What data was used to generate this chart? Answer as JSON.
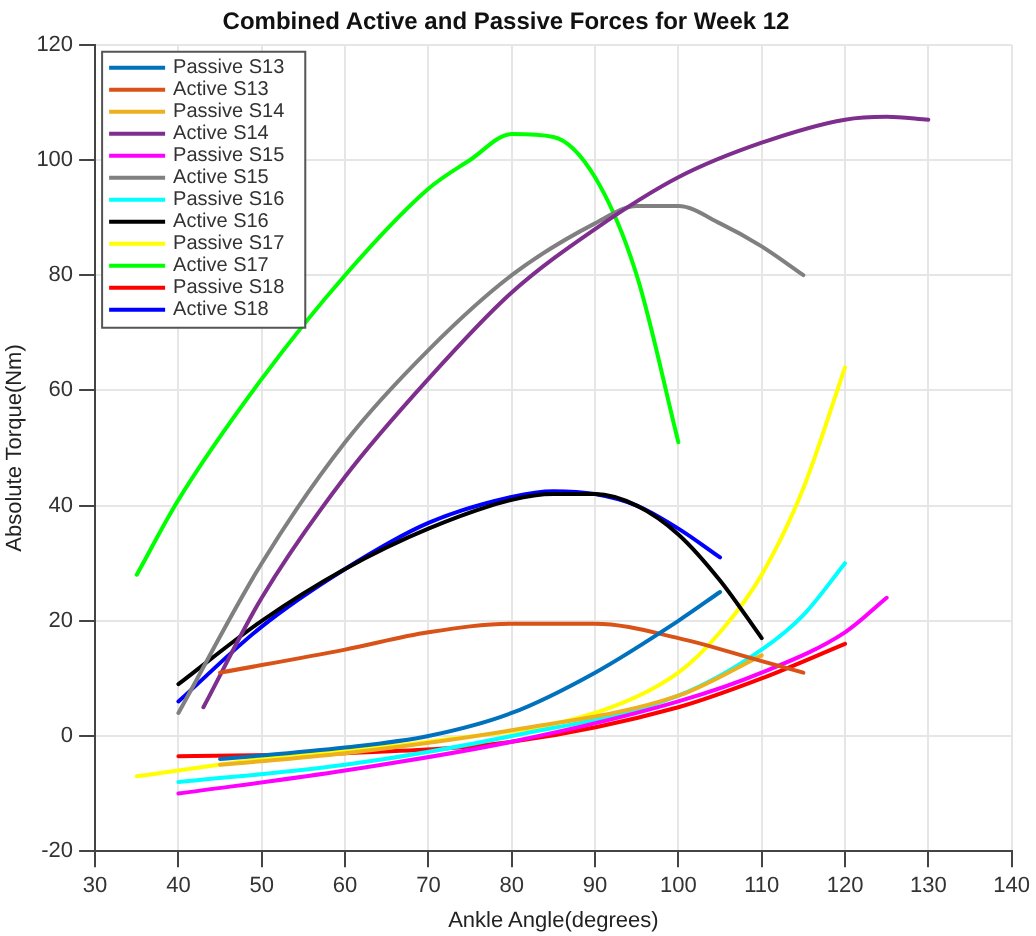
{
  "chart_data": {
    "type": "line",
    "title": "Combined Active and Passive Forces for Week 12",
    "xlabel": "Ankle Angle(degrees)",
    "ylabel": "Absolute Torque(Nm)",
    "xlim": [
      30,
      140
    ],
    "xticks": [
      30,
      40,
      50,
      60,
      70,
      80,
      90,
      100,
      110,
      120,
      130,
      140
    ],
    "ylim": [
      -20,
      120
    ],
    "yticks": [
      -20,
      0,
      20,
      40,
      60,
      80,
      100,
      120
    ],
    "grid": true,
    "legend": "top left",
    "marker": "none",
    "line_style": "solid",
    "series": [
      {
        "name": "Passive S13",
        "color": "#0072bd",
        "x": [
          45,
          60,
          70,
          80,
          90,
          100,
          105
        ],
        "values": [
          -4,
          -2,
          0,
          4,
          11,
          20,
          25
        ]
      },
      {
        "name": "Active S13",
        "color": "#d95319",
        "x": [
          45,
          60,
          70,
          80,
          90,
          100,
          110,
          115
        ],
        "values": [
          11,
          15,
          18,
          19.5,
          19.5,
          17,
          13,
          11
        ]
      },
      {
        "name": "Passive S14",
        "color": "#edb120",
        "x": [
          45,
          60,
          80,
          100,
          110
        ],
        "values": [
          -5,
          -3,
          1,
          7,
          14
        ]
      },
      {
        "name": "Active S14",
        "color": "#7e2f8e",
        "x": [
          43,
          50,
          60,
          70,
          80,
          90,
          100,
          110,
          120,
          125,
          130
        ],
        "values": [
          5,
          24,
          45,
          62,
          77,
          88,
          97,
          103,
          107,
          107.5,
          107
        ]
      },
      {
        "name": "Passive S15",
        "color": "#ff00ff",
        "x": [
          40,
          60,
          80,
          100,
          110,
          120,
          125
        ],
        "values": [
          -10,
          -6,
          -1,
          6,
          11,
          18,
          24
        ]
      },
      {
        "name": "Active S15",
        "color": "#808080",
        "x": [
          40,
          50,
          60,
          70,
          80,
          90,
          95,
          100,
          105,
          110,
          115
        ],
        "values": [
          4,
          30,
          51,
          67,
          80,
          89,
          92,
          92,
          89,
          85,
          80
        ]
      },
      {
        "name": "Passive S16",
        "color": "#00ffff",
        "x": [
          40,
          60,
          80,
          100,
          110,
          115,
          120
        ],
        "values": [
          -8,
          -5,
          0,
          7,
          15,
          21,
          30
        ]
      },
      {
        "name": "Active S16",
        "color": "#000000",
        "x": [
          40,
          50,
          60,
          70,
          80,
          85,
          90,
          95,
          100,
          105,
          110
        ],
        "values": [
          9,
          20,
          29,
          36,
          41,
          42,
          42,
          40,
          35,
          27,
          17
        ]
      },
      {
        "name": "Passive S17",
        "color": "#ffff00",
        "x": [
          35,
          50,
          70,
          90,
          100,
          105,
          110,
          115,
          120
        ],
        "values": [
          -7,
          -4,
          -1,
          4,
          11,
          18,
          28,
          43,
          64
        ]
      },
      {
        "name": "Active S17",
        "color": "#00ff00",
        "x": [
          35,
          40,
          50,
          60,
          70,
          75,
          80,
          85,
          90,
          95,
          100
        ],
        "values": [
          28,
          41,
          62,
          80,
          95,
          100,
          104.5,
          104,
          97,
          80,
          51
        ]
      },
      {
        "name": "Passive S18",
        "color": "#ff0000",
        "x": [
          40,
          60,
          80,
          100,
          110,
          120
        ],
        "values": [
          -3.5,
          -3,
          -1,
          5,
          10,
          16
        ]
      },
      {
        "name": "Active S18",
        "color": "#0000ff",
        "x": [
          40,
          50,
          60,
          70,
          80,
          85,
          90,
          95,
          100,
          105
        ],
        "values": [
          6,
          19,
          29,
          37,
          41.5,
          42.5,
          42,
          40,
          36,
          31
        ]
      }
    ]
  }
}
